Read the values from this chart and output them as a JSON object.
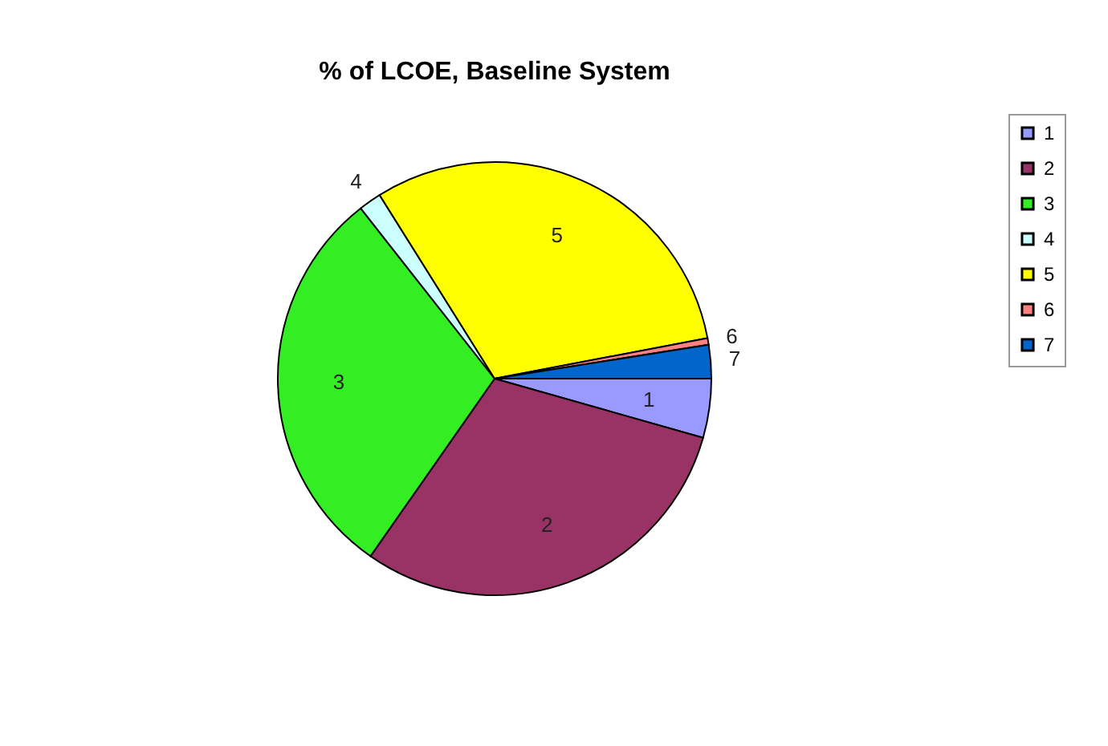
{
  "chart_data": {
    "type": "pie",
    "title": "% of LCOE, Baseline System",
    "categories": [
      "1",
      "2",
      "3",
      "4",
      "5",
      "6",
      "7"
    ],
    "values": [
      4.4,
      30.3,
      29.7,
      1.7,
      30.9,
      0.5,
      2.5
    ],
    "colors": [
      "#9999ff",
      "#993366",
      "#33ee22",
      "#ccffff",
      "#ffff00",
      "#ff8080",
      "#0066cc"
    ],
    "legend": "right"
  }
}
